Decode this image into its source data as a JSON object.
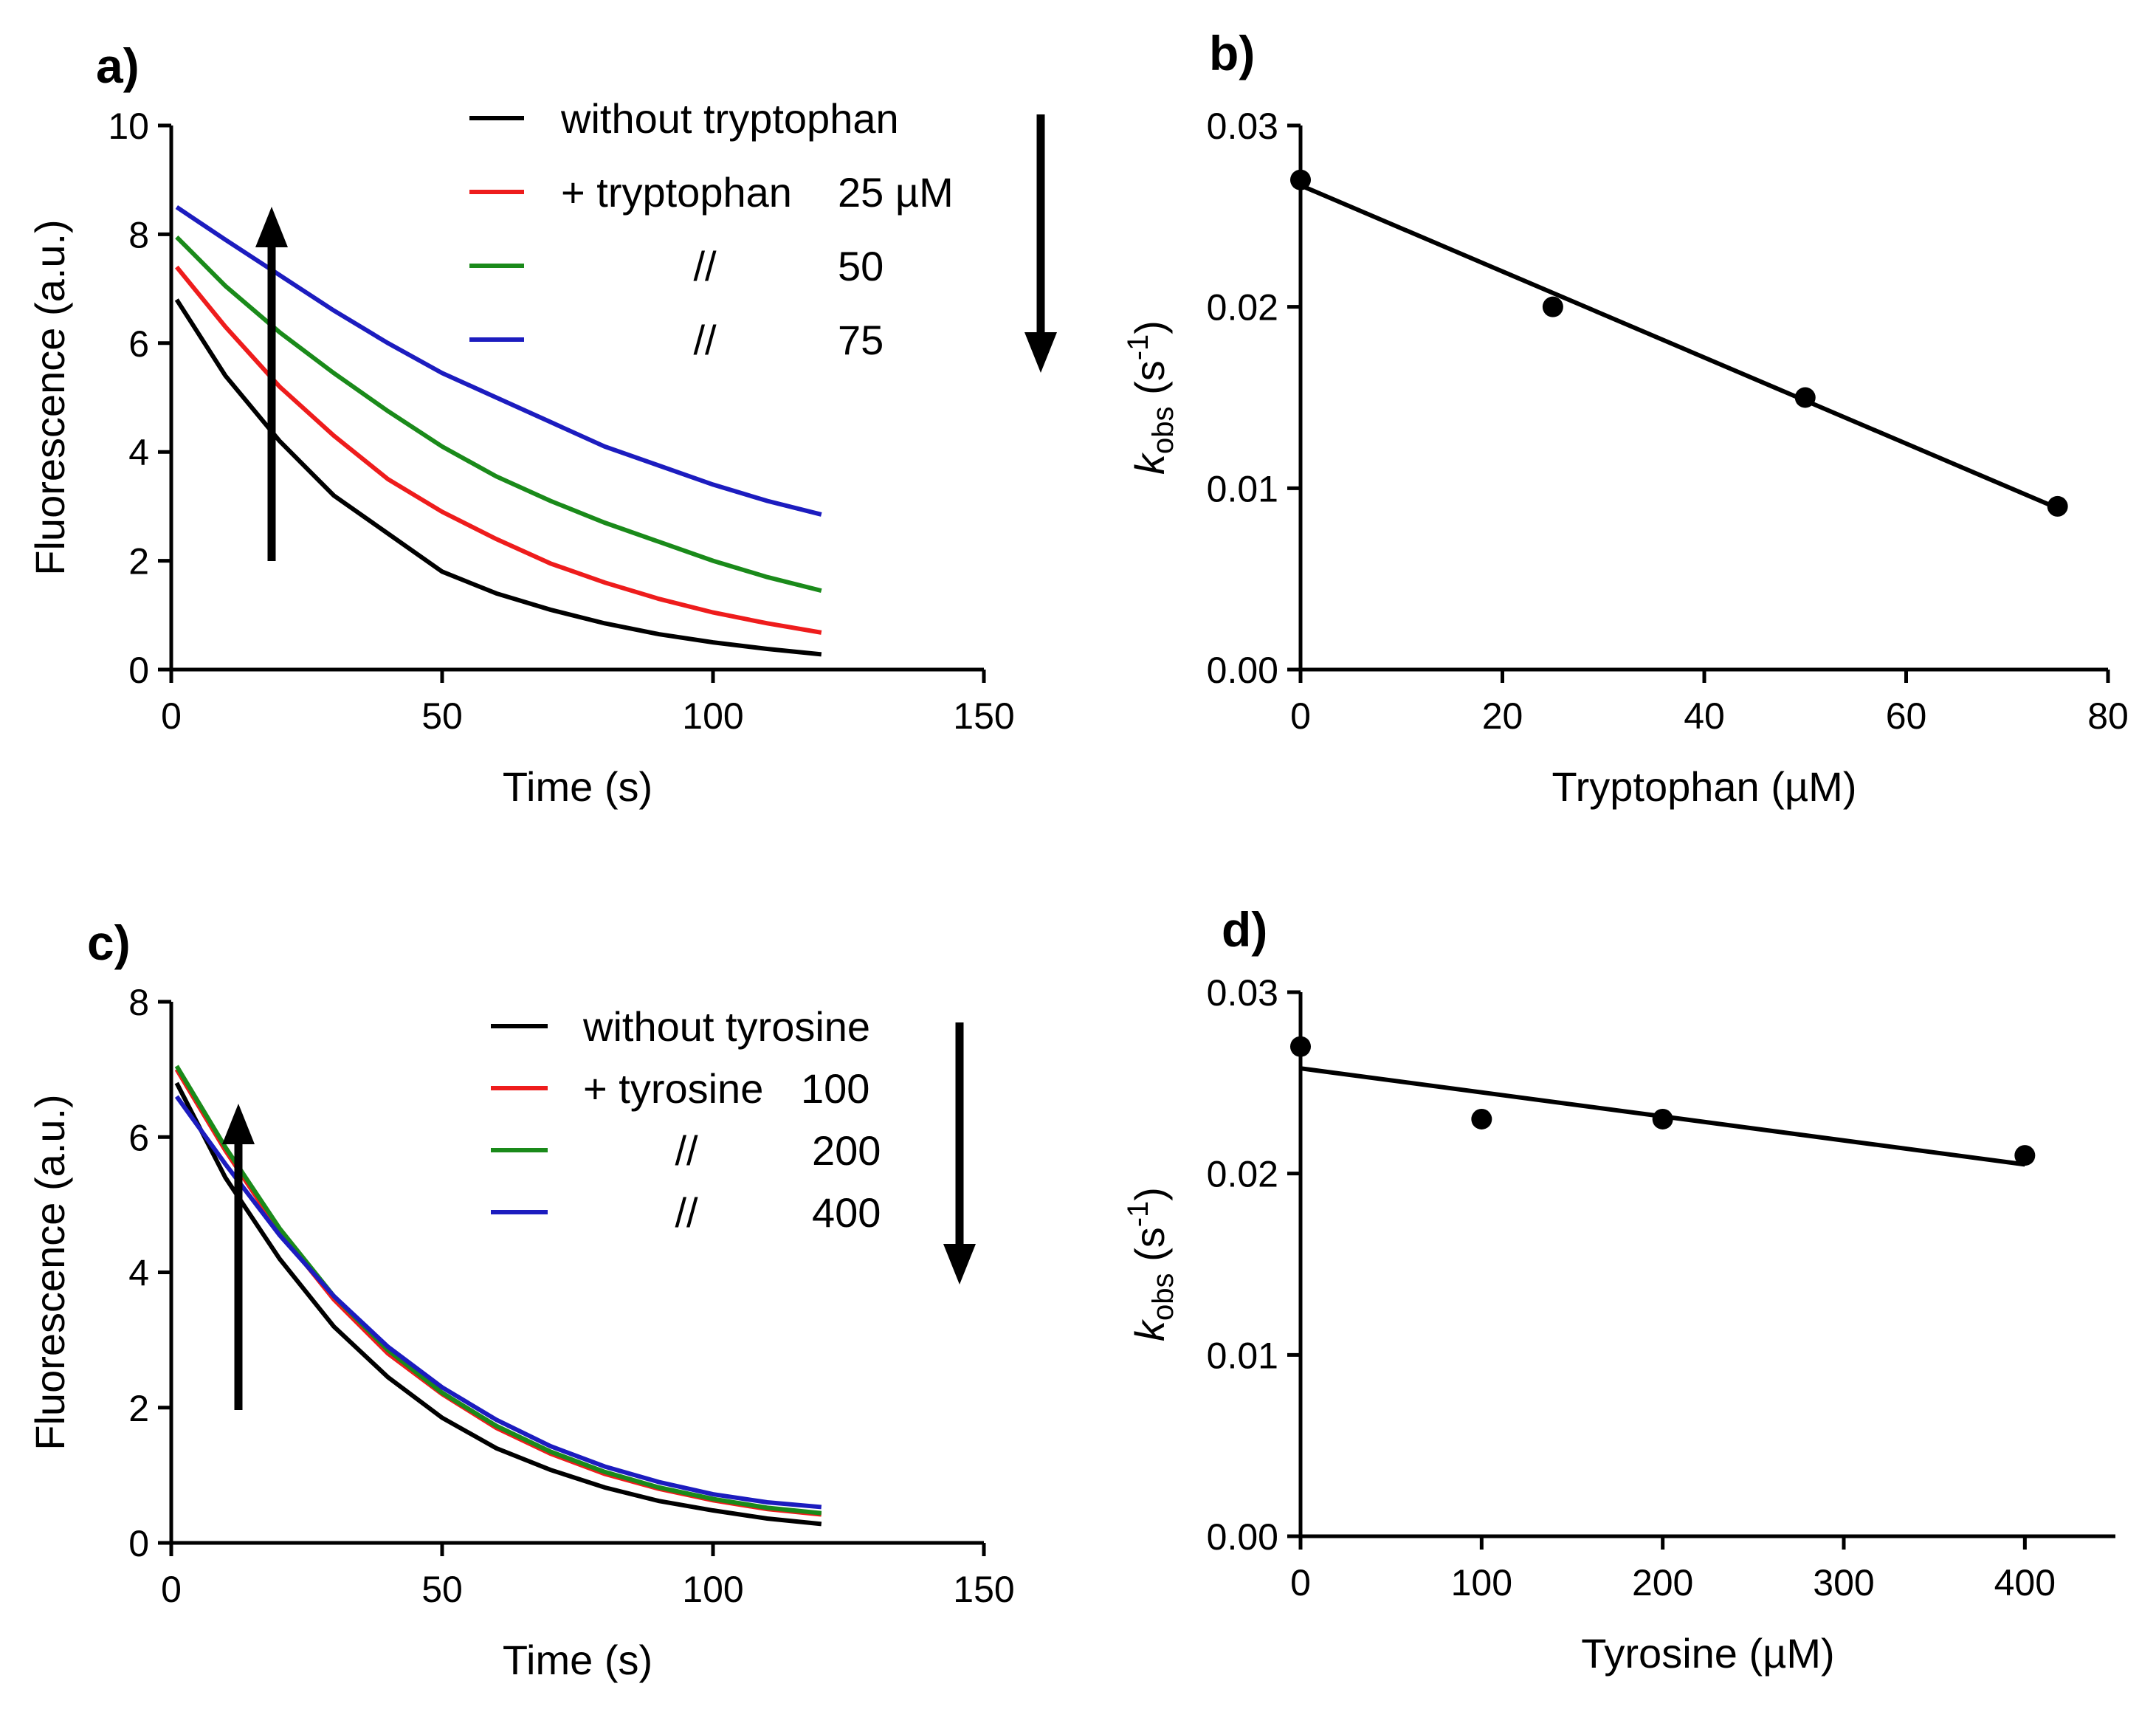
{
  "chart_data": [
    {
      "id": "a",
      "type": "line",
      "panel_label": "a)",
      "xlabel": "Time (s)",
      "ylabel": "Fluorescence (a.u.)",
      "xlim": [
        0,
        150
      ],
      "ylim": [
        0,
        10
      ],
      "xticks": [
        "0",
        "50",
        "100",
        "150"
      ],
      "yticks": [
        "0",
        "2",
        "4",
        "6",
        "8",
        "10"
      ],
      "xtick_values": [
        0,
        50,
        100,
        150
      ],
      "ytick_values": [
        0,
        2,
        4,
        6,
        8,
        10
      ],
      "grid": false,
      "legend_position": "top-right",
      "arrow_annotations": [
        "up",
        "down"
      ],
      "series": [
        {
          "name": "without tryptophan",
          "color": "#000000",
          "legend_label": "without tryptophan",
          "legend_conc": "",
          "x": [
            1,
            10,
            20,
            30,
            40,
            50,
            60,
            70,
            80,
            90,
            100,
            110,
            120
          ],
          "y": [
            6.8,
            5.4,
            4.2,
            3.2,
            2.5,
            1.8,
            1.4,
            1.1,
            0.85,
            0.65,
            0.5,
            0.38,
            0.28
          ]
        },
        {
          "name": "+ tryptophan 25 µM",
          "color": "#ee1c1c",
          "legend_label": "+ tryptophan",
          "legend_conc": "25  µM",
          "x": [
            1,
            10,
            20,
            30,
            40,
            50,
            60,
            70,
            80,
            90,
            100,
            110,
            120
          ],
          "y": [
            7.4,
            6.3,
            5.2,
            4.3,
            3.5,
            2.9,
            2.4,
            1.95,
            1.6,
            1.3,
            1.05,
            0.85,
            0.68
          ]
        },
        {
          "name": "// 50",
          "color": "#1a8a1a",
          "legend_label": "//",
          "legend_conc": "50",
          "x": [
            1,
            10,
            20,
            30,
            40,
            50,
            60,
            70,
            80,
            90,
            100,
            110,
            120
          ],
          "y": [
            7.95,
            7.05,
            6.2,
            5.45,
            4.75,
            4.1,
            3.55,
            3.1,
            2.7,
            2.35,
            2.0,
            1.7,
            1.45
          ]
        },
        {
          "name": "// 75",
          "color": "#1c1cbf",
          "legend_label": "//",
          "legend_conc": "75",
          "x": [
            1,
            10,
            20,
            30,
            40,
            50,
            60,
            70,
            80,
            90,
            100,
            110,
            120
          ],
          "y": [
            8.5,
            7.9,
            7.25,
            6.6,
            6.0,
            5.45,
            5.0,
            4.55,
            4.1,
            3.75,
            3.4,
            3.1,
            2.85
          ]
        }
      ]
    },
    {
      "id": "b",
      "type": "scatter",
      "panel_label": "b)",
      "xlabel": "Tryptophan (µM)",
      "ylabel_main": "k",
      "ylabel_sub": "obs",
      "ylabel_unit_open": " (s",
      "ylabel_sup": "-1",
      "ylabel_unit_close": ")",
      "xlim": [
        0,
        80
      ],
      "ylim": [
        0,
        0.03
      ],
      "xticks": [
        "0",
        "20",
        "40",
        "60",
        "80"
      ],
      "yticks": [
        "0.00",
        "0.01",
        "0.02",
        "0.03"
      ],
      "xtick_values": [
        0,
        20,
        40,
        60,
        80
      ],
      "ytick_values": [
        0,
        0.01,
        0.02,
        0.03
      ],
      "grid": false,
      "points": {
        "x": [
          0,
          25,
          50,
          75
        ],
        "y": [
          0.027,
          0.02,
          0.015,
          0.009
        ]
      },
      "fit": {
        "x": [
          0,
          75
        ],
        "y": [
          0.0267,
          0.0089
        ]
      }
    },
    {
      "id": "c",
      "type": "line",
      "panel_label": "c)",
      "xlabel": "Time (s)",
      "ylabel": "Fluorescence (a.u.)",
      "xlim": [
        0,
        150
      ],
      "ylim": [
        0,
        8
      ],
      "xticks": [
        "0",
        "50",
        "100",
        "150"
      ],
      "yticks": [
        "0",
        "2",
        "4",
        "6",
        "8"
      ],
      "xtick_values": [
        0,
        50,
        100,
        150
      ],
      "ytick_values": [
        0,
        2,
        4,
        6,
        8
      ],
      "grid": false,
      "legend_position": "top-right",
      "arrow_annotations": [
        "up",
        "down"
      ],
      "series": [
        {
          "name": "without tyrosine",
          "color": "#000000",
          "legend_label": "without tyrosine",
          "legend_conc": "",
          "x": [
            1,
            10,
            20,
            30,
            40,
            50,
            60,
            70,
            80,
            90,
            100,
            110,
            120
          ],
          "y": [
            6.8,
            5.4,
            4.2,
            3.2,
            2.45,
            1.85,
            1.4,
            1.08,
            0.82,
            0.62,
            0.48,
            0.36,
            0.28
          ]
        },
        {
          "name": "+ tyrosine 100",
          "color": "#ee1c1c",
          "legend_label": "+ tyrosine",
          "legend_conc": "100",
          "x": [
            1,
            10,
            20,
            30,
            40,
            50,
            60,
            70,
            80,
            90,
            100,
            110,
            120
          ],
          "y": [
            7.0,
            5.8,
            4.6,
            3.6,
            2.8,
            2.2,
            1.7,
            1.32,
            1.02,
            0.8,
            0.63,
            0.5,
            0.42
          ]
        },
        {
          "name": "// 200",
          "color": "#1a8a1a",
          "legend_label": "//",
          "legend_conc": "200",
          "x": [
            1,
            10,
            20,
            30,
            40,
            50,
            60,
            70,
            80,
            90,
            100,
            110,
            120
          ],
          "y": [
            7.05,
            5.85,
            4.65,
            3.65,
            2.85,
            2.22,
            1.73,
            1.35,
            1.05,
            0.82,
            0.65,
            0.52,
            0.44
          ]
        },
        {
          "name": "// 400",
          "color": "#1c1cbf",
          "legend_label": "//",
          "legend_conc": "400",
          "x": [
            1,
            10,
            20,
            30,
            40,
            50,
            60,
            70,
            80,
            90,
            100,
            110,
            120
          ],
          "y": [
            6.6,
            5.6,
            4.55,
            3.65,
            2.9,
            2.3,
            1.82,
            1.43,
            1.13,
            0.9,
            0.72,
            0.6,
            0.53
          ]
        }
      ]
    },
    {
      "id": "d",
      "type": "scatter",
      "panel_label": "d)",
      "xlabel": "Tyrosine (µM)",
      "ylabel_main": "k",
      "ylabel_sub": "obs",
      "ylabel_unit_open": " (s",
      "ylabel_sup": "-1",
      "ylabel_unit_close": ")",
      "xlim": [
        0,
        450
      ],
      "ylim": [
        0,
        0.03
      ],
      "xticks": [
        "0",
        "100",
        "200",
        "300",
        "400"
      ],
      "yticks": [
        "0.00",
        "0.01",
        "0.02",
        "0.03"
      ],
      "xtick_values": [
        0,
        100,
        200,
        300,
        400
      ],
      "ytick_values": [
        0,
        0.01,
        0.02,
        0.03
      ],
      "grid": false,
      "points": {
        "x": [
          0,
          100,
          200,
          400
        ],
        "y": [
          0.027,
          0.023,
          0.023,
          0.021
        ]
      },
      "fit": {
        "x": [
          0,
          400
        ],
        "y": [
          0.0258,
          0.0205
        ]
      }
    }
  ]
}
